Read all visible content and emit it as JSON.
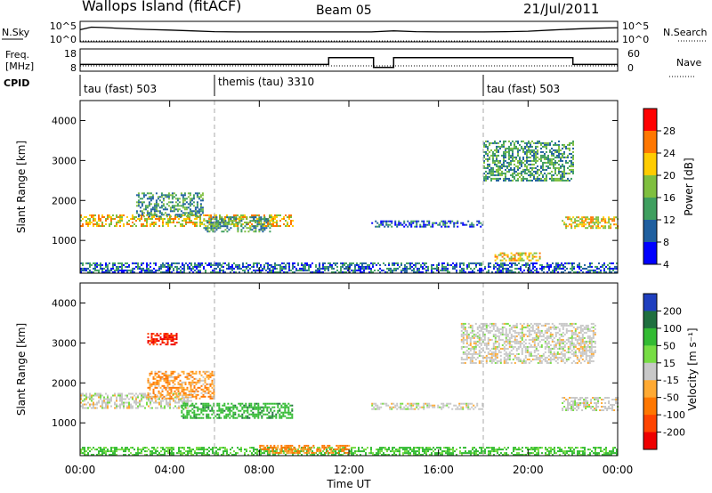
{
  "header": {
    "station": "Wallops Island (fitACF)",
    "beam": "Beam 05",
    "date": "21/Jul/2011"
  },
  "top_panels": {
    "nsky_label": "N.Sky",
    "nsky_ticks": [
      "10^5",
      "10^0"
    ],
    "nsearch_label": "N.Search",
    "nsearch_ticks": [
      "10^5",
      "10^0"
    ],
    "freq_label_1": "Freq.",
    "freq_label_2": "[MHz]",
    "freq_ticks": [
      "18",
      "8"
    ],
    "nave_label": "Nave",
    "nave_ticks": [
      "60",
      "0"
    ],
    "cpid_label": "CPID",
    "cpid_segments": [
      {
        "start": 0,
        "end": 6.0,
        "text": "tau (fast) 503"
      },
      {
        "start": 6.0,
        "end": 18.0,
        "text": "themis (tau) 3310"
      },
      {
        "start": 18.0,
        "end": 24.0,
        "text": "tau (fast) 503"
      }
    ]
  },
  "power_colorbar": {
    "label": "Power [dB]",
    "ticks": [
      "28",
      "24",
      "20",
      "16",
      "12",
      "8",
      "4"
    ],
    "colors": [
      "#ff0000",
      "#ff7700",
      "#ffcc00",
      "#7fbf3f",
      "#3f9f5f",
      "#1f5f9f",
      "#0000ff"
    ]
  },
  "velocity_colorbar": {
    "label": "Velocity [m s⁻¹]",
    "ticks": [
      "200",
      "100",
      "50",
      "15",
      "-15",
      "-50",
      "-100",
      "-200"
    ],
    "colors": [
      "#1f3fbf",
      "#1f6f3f",
      "#33bb33",
      "#77dd44",
      "#c8c8c8",
      "#ffaa33",
      "#ff7700",
      "#ff4400",
      "#ee0000"
    ]
  },
  "chart_data": [
    {
      "type": "line",
      "title": "N.Sky / N.Search",
      "x": [
        0,
        0.5,
        1,
        2,
        3,
        4,
        5,
        6,
        7,
        8,
        9,
        10,
        11,
        12,
        13,
        14,
        15,
        16,
        17,
        18,
        19,
        20,
        21,
        22,
        23,
        24
      ],
      "series": [
        {
          "name": "N.Sky",
          "values": [
            1000,
            5000,
            4000,
            2000,
            1200,
            800,
            500,
            300,
            250,
            250,
            250,
            250,
            250,
            250,
            250,
            500,
            300,
            250,
            250,
            250,
            300,
            400,
            800,
            1500,
            2500,
            3500
          ]
        },
        {
          "name": "N.Search",
          "values": [
            1,
            1,
            1,
            1,
            1,
            1,
            1,
            1,
            1,
            1,
            1,
            1,
            1,
            1,
            1,
            1,
            1,
            1,
            1,
            1,
            1,
            1,
            1,
            1,
            1,
            1
          ]
        }
      ],
      "ylim": [
        1,
        100000
      ],
      "log_y": true
    },
    {
      "type": "line",
      "title": "Freq. / Nave",
      "x": [
        0,
        11.1,
        11.1,
        13.1,
        13.1,
        14.0,
        14.0,
        22.0,
        22.0,
        24
      ],
      "series": [
        {
          "name": "Freq. [MHz]",
          "values": [
            11.0,
            11.0,
            14.5,
            14.5,
            9.5,
            9.5,
            14.5,
            14.5,
            11.0,
            11.0
          ]
        },
        {
          "name": "Nave",
          "values": [
            20,
            20,
            20,
            20,
            20,
            20,
            20,
            20,
            20,
            20
          ]
        }
      ],
      "ylim": [
        8,
        18
      ]
    },
    {
      "type": "heatmap",
      "title": "Power [dB]",
      "xlabel": "",
      "ylabel": "Slant Range [km]",
      "xlim": [
        0,
        24
      ],
      "ylim": [
        180,
        4500
      ],
      "x_ticks": [
        "00:00",
        "04:00",
        "08:00",
        "12:00",
        "16:00",
        "20:00",
        "00:00"
      ],
      "y_ticks": [
        1000,
        2000,
        3000,
        4000
      ],
      "bands": [
        {
          "start": 0,
          "end": 9.5,
          "range": [
            1350,
            1650
          ],
          "value": 20
        },
        {
          "start": 2.5,
          "end": 5.5,
          "range": [
            1600,
            2200
          ],
          "value": 12
        },
        {
          "start": 5.5,
          "end": 8.5,
          "range": [
            1200,
            1600
          ],
          "value": 12
        },
        {
          "start": 0,
          "end": 24,
          "range": [
            200,
            450
          ],
          "value": 8
        },
        {
          "start": 13,
          "end": 18,
          "range": [
            1350,
            1500
          ],
          "value": 8
        },
        {
          "start": 18,
          "end": 22,
          "range": [
            2500,
            3500
          ],
          "value": 12
        },
        {
          "start": 18.5,
          "end": 20.5,
          "range": [
            500,
            700
          ],
          "value": 20
        },
        {
          "start": 21.5,
          "end": 24,
          "range": [
            1300,
            1600
          ],
          "value": 20
        }
      ]
    },
    {
      "type": "heatmap",
      "title": "Velocity [m s-1]",
      "xlabel": "Time UT",
      "ylabel": "Slant Range [km]",
      "xlim": [
        0,
        24
      ],
      "ylim": [
        180,
        4500
      ],
      "x_ticks": [
        "00:00",
        "04:00",
        "08:00",
        "12:00",
        "16:00",
        "20:00",
        "00:00"
      ],
      "y_ticks": [
        1000,
        2000,
        3000,
        4000
      ],
      "bands": [
        {
          "start": 0,
          "end": 5,
          "range": [
            1350,
            1750
          ],
          "value": 0
        },
        {
          "start": 3,
          "end": 6,
          "range": [
            1600,
            2300
          ],
          "value": -30
        },
        {
          "start": 4.5,
          "end": 9.5,
          "range": [
            1100,
            1500
          ],
          "value": 60
        },
        {
          "start": 0,
          "end": 24,
          "range": [
            200,
            400
          ],
          "value": 40
        },
        {
          "start": 8,
          "end": 12,
          "range": [
            250,
            450
          ],
          "value": -40
        },
        {
          "start": 3,
          "end": 4.3,
          "range": [
            2950,
            3250
          ],
          "value": -150
        },
        {
          "start": 13,
          "end": 18,
          "range": [
            1350,
            1500
          ],
          "value": 0
        },
        {
          "start": 17,
          "end": 23,
          "range": [
            2500,
            3500
          ],
          "value": 0
        },
        {
          "start": 21.5,
          "end": 24,
          "range": [
            1300,
            1650
          ],
          "value": 0
        }
      ]
    }
  ]
}
